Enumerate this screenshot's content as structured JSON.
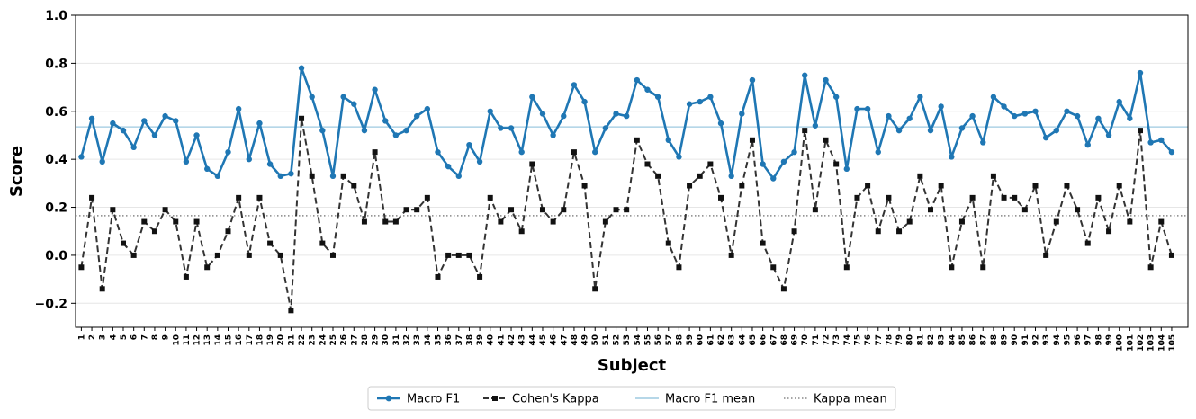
{
  "chart_data": {
    "type": "line",
    "title": "",
    "xlabel": "Subject",
    "ylabel": "Score",
    "ylim": [
      -0.3,
      1.0
    ],
    "yticks": [
      -0.2,
      0.0,
      0.2,
      0.4,
      0.6,
      0.8,
      1.0
    ],
    "ytick_labels": [
      "−0.2",
      "0.0",
      "0.2",
      "0.4",
      "0.6",
      "0.8",
      "1.0"
    ],
    "grid": "horizontal",
    "legend_position": "bottom-center",
    "x": [
      "1",
      "2",
      "3",
      "4",
      "5",
      "6",
      "7",
      "8",
      "9",
      "10",
      "11",
      "12",
      "13",
      "14",
      "15",
      "16",
      "17",
      "18",
      "19",
      "20",
      "21",
      "22",
      "23",
      "24",
      "25",
      "26",
      "27",
      "28",
      "29",
      "30",
      "31",
      "32",
      "33",
      "34",
      "35",
      "36",
      "37",
      "38",
      "39",
      "40",
      "41",
      "42",
      "43",
      "44",
      "45",
      "46",
      "47",
      "48",
      "49",
      "50",
      "51",
      "52",
      "53",
      "54",
      "55",
      "56",
      "57",
      "58",
      "59",
      "60",
      "61",
      "62",
      "63",
      "64",
      "65",
      "66",
      "67",
      "68",
      "69",
      "70",
      "71",
      "72",
      "73",
      "74",
      "75",
      "76",
      "77",
      "78",
      "79",
      "80",
      "81",
      "82",
      "83",
      "84",
      "85",
      "86",
      "87",
      "88",
      "89",
      "90",
      "91",
      "92",
      "93",
      "94",
      "95",
      "96",
      "97",
      "98",
      "99",
      "100",
      "101",
      "102",
      "103",
      "104",
      "105"
    ],
    "series": [
      {
        "name": "Macro F1",
        "color": "#1f77b4",
        "style": "solid-circle",
        "values": [
          0.41,
          0.57,
          0.39,
          0.55,
          0.52,
          0.45,
          0.56,
          0.5,
          0.58,
          0.56,
          0.39,
          0.5,
          0.36,
          0.33,
          0.43,
          0.61,
          0.4,
          0.55,
          0.38,
          0.33,
          0.34,
          0.78,
          0.66,
          0.52,
          0.33,
          0.66,
          0.63,
          0.52,
          0.69,
          0.56,
          0.5,
          0.52,
          0.58,
          0.61,
          0.43,
          0.37,
          0.33,
          0.46,
          0.39,
          0.6,
          0.53,
          0.53,
          0.43,
          0.66,
          0.59,
          0.5,
          0.58,
          0.71,
          0.64,
          0.43,
          0.53,
          0.59,
          0.58,
          0.73,
          0.69,
          0.66,
          0.48,
          0.41,
          0.63,
          0.64,
          0.66,
          0.55,
          0.33,
          0.59,
          0.73,
          0.38,
          0.32,
          0.39,
          0.43,
          0.75,
          0.54,
          0.73,
          0.66,
          0.36,
          0.61,
          0.61,
          0.43,
          0.58,
          0.52,
          0.57,
          0.66,
          0.52,
          0.62,
          0.41,
          0.53,
          0.58,
          0.47,
          0.66,
          0.62,
          0.58,
          0.59,
          0.6,
          0.49,
          0.52,
          0.6,
          0.58,
          0.46,
          0.57,
          0.5,
          0.64,
          0.57,
          0.76,
          0.47,
          0.48,
          0.43
        ]
      },
      {
        "name": "Cohen's Kappa",
        "color": "#333333",
        "style": "dashed-square",
        "values": [
          -0.05,
          0.24,
          -0.14,
          0.19,
          0.05,
          0.0,
          0.14,
          0.1,
          0.19,
          0.14,
          -0.09,
          0.14,
          -0.05,
          0.0,
          0.1,
          0.24,
          0.0,
          0.24,
          0.05,
          0.0,
          -0.23,
          0.57,
          0.33,
          0.05,
          0.0,
          0.33,
          0.29,
          0.14,
          0.43,
          0.14,
          0.14,
          0.19,
          0.19,
          0.24,
          -0.09,
          0.0,
          0.0,
          0.0,
          -0.09,
          0.24,
          0.14,
          0.19,
          0.1,
          0.38,
          0.19,
          0.14,
          0.19,
          0.43,
          0.29,
          -0.14,
          0.14,
          0.19,
          0.19,
          0.48,
          0.38,
          0.33,
          0.05,
          -0.05,
          0.29,
          0.33,
          0.38,
          0.24,
          0.0,
          0.29,
          0.48,
          0.05,
          -0.05,
          -0.14,
          0.1,
          0.52,
          0.19,
          0.48,
          0.38,
          -0.05,
          0.24,
          0.29,
          0.1,
          0.24,
          0.1,
          0.14,
          0.33,
          0.19,
          0.29,
          -0.05,
          0.14,
          0.24,
          -0.05,
          0.33,
          0.24,
          0.24,
          0.19,
          0.29,
          0.0,
          0.14,
          0.29,
          0.19,
          0.05,
          0.24,
          0.1,
          0.29,
          0.14,
          0.52,
          -0.05,
          0.14,
          0.0
        ]
      }
    ],
    "reference_lines": [
      {
        "name": "Macro F1 mean",
        "value": 0.535,
        "color": "#9ecae1",
        "style": "solid"
      },
      {
        "name": "Kappa mean",
        "value": 0.165,
        "color": "#888888",
        "style": "dotted"
      }
    ]
  }
}
